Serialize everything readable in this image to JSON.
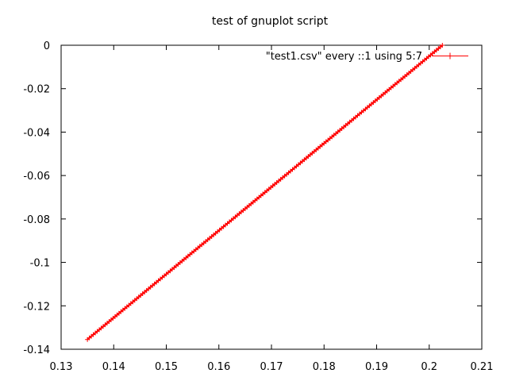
{
  "chart_data": {
    "type": "line",
    "title": "test of gnuplot script",
    "xlabel": "",
    "ylabel": "",
    "xlim": [
      0.13,
      0.21
    ],
    "ylim": [
      -0.14,
      0
    ],
    "x_ticks": [
      0.13,
      0.14,
      0.15,
      0.16,
      0.17,
      0.18,
      0.19,
      0.2,
      0.21
    ],
    "x_tick_labels": [
      "0.13",
      "0.14",
      "0.15",
      "0.16",
      "0.17",
      "0.18",
      "0.19",
      "0.2",
      "0.21"
    ],
    "y_ticks": [
      0,
      -0.02,
      -0.04,
      -0.06,
      -0.08,
      -0.1,
      -0.12,
      -0.14
    ],
    "y_tick_labels": [
      "0",
      "-0.02",
      "-0.04",
      "-0.06",
      "-0.08",
      "-0.1",
      "-0.12",
      "-0.14"
    ],
    "grid": false,
    "legend_position": "top-right",
    "series": [
      {
        "name": "\"test1.csv\" every ::1 using 5:7",
        "color": "#ff0000",
        "marker": "plus",
        "x_start": 0.135,
        "y_start": -0.1355,
        "x_end": 0.2025,
        "y_end": 0.0
      }
    ]
  }
}
